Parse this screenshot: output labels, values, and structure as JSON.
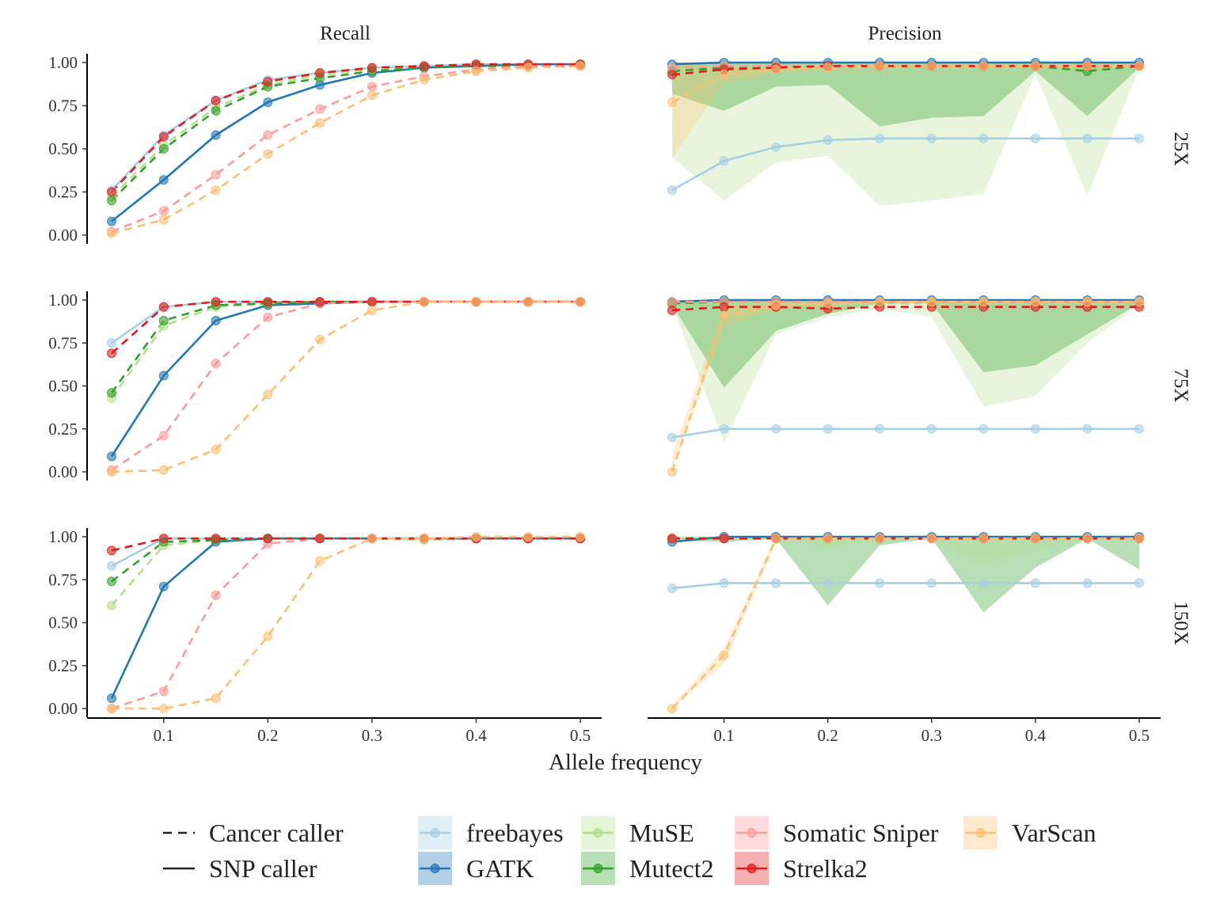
{
  "chart_data": {
    "type": "line",
    "xlabel": "Allele frequency",
    "columns": [
      "Recall",
      "Precision"
    ],
    "rows": [
      "25X",
      "75X",
      "150X"
    ],
    "x": [
      0.05,
      0.1,
      0.15,
      0.2,
      0.25,
      0.3,
      0.35,
      0.4,
      0.45,
      0.5
    ],
    "x_ticks": [
      0.1,
      0.2,
      0.3,
      0.4,
      0.5
    ],
    "x_tick_labels": [
      "0.1",
      "0.2",
      "0.3",
      "0.4",
      "0.5"
    ],
    "ylim": [
      0,
      1
    ],
    "y_ticks": [
      0,
      0.25,
      0.5,
      0.75,
      1
    ],
    "y_tick_labels": [
      "0.00",
      "0.25",
      "0.50",
      "0.75",
      "1.00"
    ],
    "grid": false,
    "legend_position": "bottom",
    "linetype_legend": [
      {
        "label": "Cancer caller",
        "dash": true
      },
      {
        "label": "SNP caller",
        "dash": false
      }
    ],
    "callers": [
      {
        "name": "freebayes",
        "color": "#a6cee3",
        "type": "SNP"
      },
      {
        "name": "GATK",
        "color": "#1f78b4",
        "type": "SNP"
      },
      {
        "name": "MuSE",
        "color": "#b2df8a",
        "type": "Cancer"
      },
      {
        "name": "Mutect2",
        "color": "#33a02c",
        "type": "Cancer"
      },
      {
        "name": "Somatic Sniper",
        "color": "#fb9a99",
        "type": "Cancer"
      },
      {
        "name": "Strelka2",
        "color": "#e31a1c",
        "type": "Cancer"
      },
      {
        "name": "VarScan",
        "color": "#fdbf6f",
        "type": "Cancer"
      }
    ],
    "panels": [
      {
        "metric": "Recall",
        "depth": "25X",
        "series": {
          "freebayes": [
            0.26,
            0.58,
            0.78,
            0.9,
            0.94,
            0.97,
            0.98,
            0.99,
            0.99,
            0.99
          ],
          "GATK": [
            0.08,
            0.32,
            0.58,
            0.77,
            0.87,
            0.94,
            0.97,
            0.98,
            0.99,
            0.99
          ],
          "MuSE": [
            0.22,
            0.52,
            0.74,
            0.87,
            0.93,
            0.96,
            0.98,
            0.99,
            0.99,
            0.99
          ],
          "Mutect2": [
            0.2,
            0.5,
            0.72,
            0.86,
            0.91,
            0.95,
            0.97,
            0.98,
            0.98,
            0.99
          ],
          "Somatic Sniper": [
            0.02,
            0.14,
            0.35,
            0.58,
            0.73,
            0.86,
            0.92,
            0.96,
            0.98,
            0.98
          ],
          "Strelka2": [
            0.25,
            0.57,
            0.78,
            0.89,
            0.94,
            0.97,
            0.98,
            0.99,
            0.99,
            0.99
          ],
          "VarScan": [
            0.01,
            0.09,
            0.26,
            0.47,
            0.65,
            0.81,
            0.9,
            0.95,
            0.97,
            0.98
          ]
        }
      },
      {
        "metric": "Precision",
        "depth": "25X",
        "series": {
          "freebayes": [
            0.26,
            0.43,
            0.51,
            0.55,
            0.56,
            0.56,
            0.56,
            0.56,
            0.56,
            0.56
          ],
          "GATK": [
            0.99,
            1.0,
            1.0,
            1.0,
            1.0,
            1.0,
            1.0,
            1.0,
            1.0,
            1.0
          ],
          "MuSE": [
            0.97,
            0.98,
            0.98,
            0.98,
            0.98,
            0.98,
            0.98,
            0.98,
            0.98,
            0.98
          ],
          "Mutect2": [
            0.95,
            0.97,
            0.98,
            0.98,
            0.98,
            0.98,
            0.98,
            0.98,
            0.95,
            0.98
          ],
          "Somatic Sniper": [
            0.97,
            0.98,
            0.98,
            0.98,
            0.98,
            0.98,
            0.98,
            0.98,
            0.98,
            0.98
          ],
          "Strelka2": [
            0.93,
            0.96,
            0.97,
            0.98,
            0.98,
            0.98,
            0.98,
            0.98,
            0.98,
            0.98
          ],
          "VarScan": [
            0.77,
            0.93,
            0.96,
            0.97,
            0.98,
            0.98,
            0.98,
            0.98,
            0.98,
            0.98
          ]
        }
      },
      {
        "metric": "Recall",
        "depth": "75X",
        "series": {
          "freebayes": [
            0.75,
            0.96,
            0.99,
            0.99,
            0.99,
            0.99,
            0.99,
            0.99,
            0.99,
            0.99
          ],
          "GATK": [
            0.09,
            0.56,
            0.88,
            0.97,
            0.98,
            0.99,
            0.99,
            0.99,
            0.99,
            0.99
          ],
          "MuSE": [
            0.43,
            0.85,
            0.96,
            0.98,
            0.99,
            0.99,
            0.99,
            0.99,
            0.99,
            0.99
          ],
          "Mutect2": [
            0.46,
            0.88,
            0.97,
            0.98,
            0.99,
            0.99,
            0.99,
            0.99,
            0.99,
            0.99
          ],
          "Somatic Sniper": [
            0.01,
            0.21,
            0.63,
            0.9,
            0.98,
            0.99,
            0.99,
            0.99,
            0.99,
            0.99
          ],
          "Strelka2": [
            0.69,
            0.96,
            0.99,
            0.99,
            0.99,
            0.99,
            0.99,
            0.99,
            0.99,
            0.99
          ],
          "VarScan": [
            0.0,
            0.01,
            0.13,
            0.45,
            0.77,
            0.94,
            0.99,
            0.99,
            0.99,
            0.99
          ]
        }
      },
      {
        "metric": "Precision",
        "depth": "75X",
        "series": {
          "freebayes": [
            0.2,
            0.25,
            0.25,
            0.25,
            0.25,
            0.25,
            0.25,
            0.25,
            0.25,
            0.25
          ],
          "GATK": [
            0.99,
            1.0,
            1.0,
            1.0,
            1.0,
            1.0,
            1.0,
            1.0,
            1.0,
            1.0
          ],
          "MuSE": [
            0.98,
            0.98,
            0.98,
            0.98,
            0.98,
            0.98,
            0.98,
            0.98,
            0.98,
            0.98
          ],
          "Mutect2": [
            0.98,
            0.99,
            0.99,
            0.99,
            0.99,
            0.99,
            0.99,
            0.99,
            0.99,
            0.99
          ],
          "Somatic Sniper": [
            0.99,
            0.99,
            0.99,
            0.99,
            0.99,
            0.99,
            0.99,
            0.99,
            0.99,
            0.99
          ],
          "Strelka2": [
            0.94,
            0.96,
            0.96,
            0.95,
            0.96,
            0.96,
            0.96,
            0.96,
            0.96,
            0.96
          ],
          "VarScan": [
            0.0,
            0.91,
            0.97,
            0.98,
            0.99,
            0.99,
            0.99,
            0.99,
            0.99,
            0.99
          ]
        }
      },
      {
        "metric": "Recall",
        "depth": "150X",
        "series": {
          "freebayes": [
            0.83,
            0.99,
            0.99,
            0.99,
            0.99,
            0.99,
            0.99,
            0.99,
            0.99,
            0.99
          ],
          "GATK": [
            0.06,
            0.71,
            0.97,
            0.99,
            0.99,
            0.99,
            0.99,
            0.99,
            0.99,
            0.99
          ],
          "MuSE": [
            0.6,
            0.95,
            0.98,
            0.99,
            0.99,
            0.99,
            0.98,
            0.99,
            0.99,
            0.99
          ],
          "Mutect2": [
            0.74,
            0.97,
            0.98,
            0.99,
            0.99,
            0.99,
            0.99,
            0.99,
            0.99,
            0.99
          ],
          "Somatic Sniper": [
            0.0,
            0.1,
            0.66,
            0.96,
            0.99,
            0.99,
            0.99,
            0.99,
            0.99,
            0.99
          ],
          "Strelka2": [
            0.92,
            0.99,
            0.99,
            0.99,
            0.99,
            0.99,
            0.99,
            0.99,
            0.99,
            0.99
          ],
          "VarScan": [
            0.0,
            0.0,
            0.06,
            0.42,
            0.86,
            0.99,
            0.99,
            1.0,
            1.0,
            1.0
          ]
        }
      },
      {
        "metric": "Precision",
        "depth": "150X",
        "series": {
          "freebayes": [
            0.7,
            0.73,
            0.73,
            0.73,
            0.73,
            0.73,
            0.73,
            0.73,
            0.73,
            0.73
          ],
          "GATK": [
            0.97,
            1.0,
            1.0,
            1.0,
            1.0,
            1.0,
            1.0,
            1.0,
            1.0,
            1.0
          ],
          "MuSE": [
            0.99,
            0.99,
            0.99,
            0.99,
            0.99,
            0.99,
            0.99,
            0.99,
            0.99,
            0.99
          ],
          "Mutect2": [
            0.99,
            0.99,
            0.99,
            0.99,
            0.99,
            0.99,
            0.99,
            0.99,
            0.99,
            0.99
          ],
          "Somatic Sniper": [
            0.99,
            0.99,
            0.99,
            0.99,
            0.99,
            0.99,
            0.99,
            0.99,
            0.99,
            0.99
          ],
          "Strelka2": [
            0.99,
            0.99,
            0.99,
            0.99,
            0.99,
            0.99,
            0.99,
            0.99,
            0.99,
            0.99
          ],
          "VarScan": [
            0.0,
            0.31,
            0.99,
            0.99,
            0.99,
            0.99,
            0.99,
            0.99,
            0.99,
            0.99
          ]
        }
      }
    ],
    "bands": [
      {
        "panel": 1,
        "caller": "MuSE",
        "lower": [
          0.45,
          0.2,
          0.42,
          0.46,
          0.17,
          0.2,
          0.24,
          0.93,
          0.23,
          0.96
        ],
        "upper": [
          1.0,
          1.0,
          1.0,
          1.0,
          1.0,
          1.0,
          1.0,
          1.0,
          1.0,
          1.0
        ]
      },
      {
        "panel": 1,
        "caller": "Mutect2",
        "lower": [
          0.82,
          0.72,
          0.86,
          0.87,
          0.63,
          0.68,
          0.69,
          0.95,
          0.69,
          0.97
        ],
        "upper": [
          1.0,
          1.0,
          1.0,
          1.0,
          1.0,
          1.0,
          1.0,
          1.0,
          1.0,
          1.0
        ]
      },
      {
        "panel": 1,
        "caller": "VarScan",
        "lower": [
          0.45,
          0.88,
          0.94,
          0.96,
          0.97,
          0.97,
          0.97,
          0.97,
          0.97,
          0.97
        ],
        "upper": [
          1.0,
          0.98,
          0.99,
          0.99,
          0.99,
          0.99,
          0.99,
          0.99,
          0.99,
          0.99
        ]
      },
      {
        "panel": 3,
        "caller": "MuSE",
        "lower": [
          0.97,
          0.17,
          0.8,
          0.9,
          0.95,
          0.9,
          0.38,
          0.44,
          0.75,
          0.97
        ],
        "upper": [
          1.0,
          1.0,
          1.0,
          1.0,
          1.0,
          1.0,
          1.0,
          1.0,
          1.0,
          1.0
        ]
      },
      {
        "panel": 3,
        "caller": "Mutect2",
        "lower": [
          0.97,
          0.49,
          0.82,
          0.92,
          0.98,
          0.98,
          0.58,
          0.62,
          0.8,
          0.98
        ],
        "upper": [
          1.0,
          1.0,
          1.0,
          1.0,
          1.0,
          1.0,
          1.0,
          1.0,
          1.0,
          1.0
        ]
      },
      {
        "panel": 3,
        "caller": "VarScan",
        "lower": [
          0.0,
          0.85,
          0.95,
          0.97,
          0.98,
          0.98,
          0.98,
          0.98,
          0.98,
          0.98
        ],
        "upper": [
          0.1,
          0.97,
          0.99,
          0.99,
          0.99,
          0.99,
          0.99,
          0.99,
          0.99,
          0.99
        ]
      },
      {
        "panel": 5,
        "caller": "Mutect2",
        "lower": [
          0.98,
          0.97,
          0.99,
          0.6,
          0.95,
          0.99,
          0.56,
          0.82,
          0.99,
          0.81
        ],
        "upper": [
          1.0,
          1.0,
          1.0,
          1.0,
          1.0,
          1.0,
          1.0,
          1.0,
          1.0,
          1.0
        ]
      },
      {
        "panel": 5,
        "caller": "MuSE",
        "lower": [
          0.98,
          0.97,
          0.99,
          0.94,
          0.97,
          0.99,
          0.84,
          0.92,
          0.99,
          0.97
        ],
        "upper": [
          1.0,
          1.0,
          1.0,
          1.0,
          1.0,
          1.0,
          1.0,
          1.0,
          1.0,
          1.0
        ]
      },
      {
        "panel": 5,
        "caller": "VarScan",
        "lower": [
          0.0,
          0.26,
          0.97,
          0.98,
          0.98,
          0.98,
          0.98,
          0.98,
          0.98,
          0.98
        ],
        "upper": [
          0.02,
          0.35,
          1.0,
          1.0,
          1.0,
          1.0,
          1.0,
          1.0,
          1.0,
          1.0
        ]
      }
    ]
  }
}
